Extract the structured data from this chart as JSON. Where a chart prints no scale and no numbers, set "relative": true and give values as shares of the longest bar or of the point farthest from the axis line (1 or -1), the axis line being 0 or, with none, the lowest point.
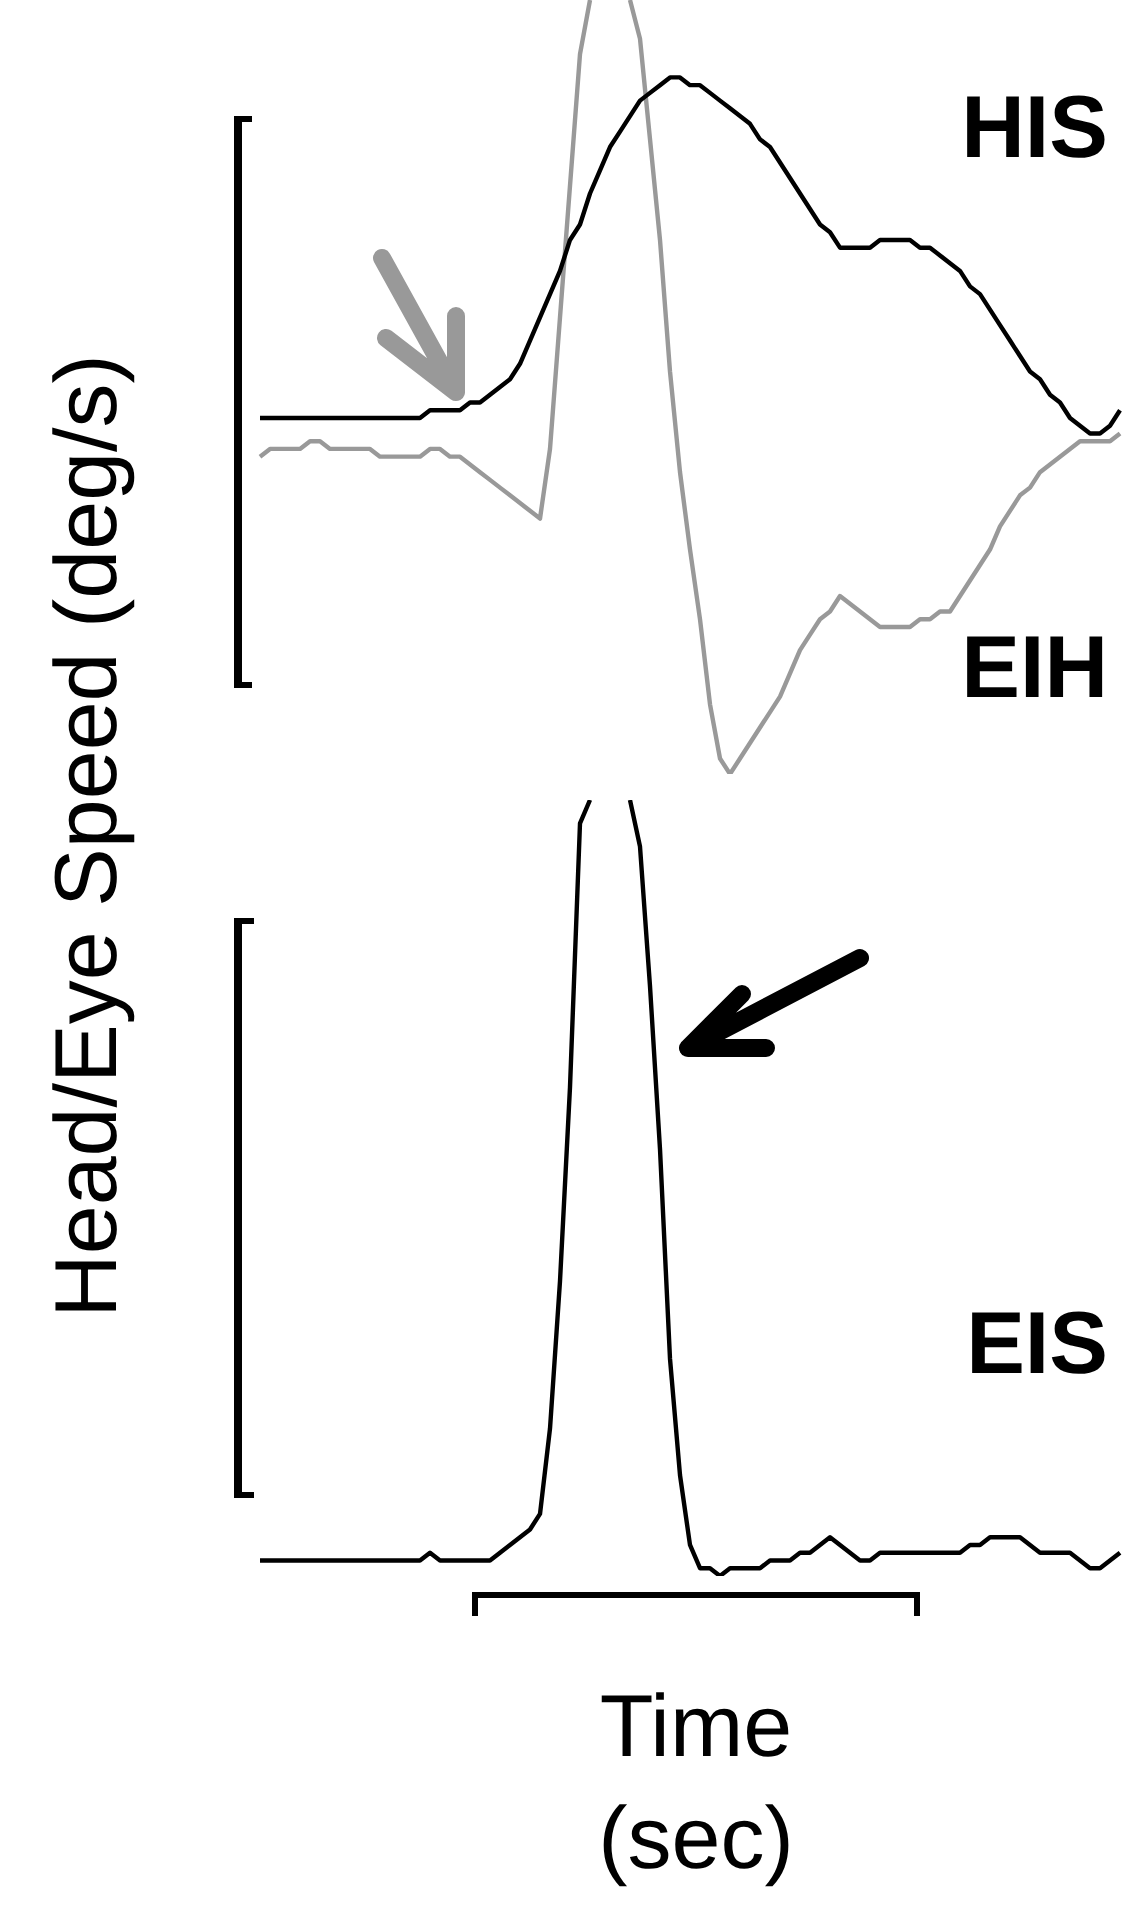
{
  "chart_data": [
    {
      "type": "line",
      "relative": true,
      "ylabel": "Head/Eye Speed (deg/s)",
      "marker": "none",
      "line_style": "solid",
      "categories": [
        null,
        null,
        null,
        null,
        null,
        null,
        null,
        null,
        null,
        null,
        null,
        null,
        null,
        null,
        null,
        null,
        null,
        null,
        null,
        null,
        null,
        null,
        null,
        null,
        null,
        null,
        null,
        null,
        null,
        null,
        null,
        null,
        null,
        null,
        null,
        null,
        null,
        null,
        null,
        null,
        null,
        null,
        null,
        null,
        null,
        null,
        null,
        null,
        null,
        null,
        null,
        null,
        null,
        null,
        null,
        null,
        null,
        null,
        null,
        null,
        null,
        null,
        null,
        null,
        null,
        null,
        null,
        null,
        null,
        null,
        null,
        null,
        null,
        null,
        null,
        null,
        null,
        null,
        null,
        null,
        null,
        null,
        null,
        null,
        null,
        null,
        null
      ],
      "series": [
        {
          "name": "HIS",
          "color": "#000000",
          "values": [
            0.46,
            0.46,
            0.46,
            0.46,
            0.46,
            0.46,
            0.46,
            0.46,
            0.46,
            0.46,
            0.46,
            0.46,
            0.46,
            0.46,
            0.46,
            0.46,
            0.46,
            0.47,
            0.47,
            0.47,
            0.47,
            0.48,
            0.48,
            0.49,
            0.5,
            0.51,
            0.53,
            0.56,
            0.59,
            0.62,
            0.65,
            0.69,
            0.71,
            0.75,
            0.78,
            0.81,
            0.83,
            0.85,
            0.87,
            0.88,
            0.89,
            0.9,
            0.9,
            0.89,
            0.89,
            0.88,
            0.87,
            0.86,
            0.85,
            0.84,
            0.82,
            0.81,
            0.79,
            0.77,
            0.75,
            0.73,
            0.71,
            0.7,
            0.68,
            0.68,
            0.68,
            0.68,
            0.69,
            0.69,
            0.69,
            0.69,
            0.68,
            0.68,
            0.67,
            0.66,
            0.65,
            0.63,
            0.62,
            0.6,
            0.58,
            0.56,
            0.54,
            0.52,
            0.51,
            0.49,
            0.48,
            0.46,
            0.45,
            0.44,
            0.44,
            0.45,
            0.47
          ]
        },
        {
          "name": "EIH",
          "color": "#999999",
          "values": [
            0.41,
            0.42,
            0.42,
            0.42,
            0.42,
            0.43,
            0.43,
            0.42,
            0.42,
            0.42,
            0.42,
            0.42,
            0.41,
            0.41,
            0.41,
            0.41,
            0.41,
            0.42,
            0.42,
            0.41,
            0.41,
            0.4,
            0.39,
            0.38,
            0.37,
            0.36,
            0.35,
            0.34,
            0.33,
            0.42,
            0.59,
            0.76,
            0.93,
            1,
            null,
            null,
            null,
            1,
            0.95,
            0.82,
            0.69,
            0.52,
            0.39,
            0.29,
            0.2,
            0.09,
            0.02,
            0.0,
            0.02,
            0.04,
            0.06,
            0.08,
            0.1,
            0.13,
            0.16,
            0.18,
            0.2,
            0.21,
            0.23,
            0.22,
            0.21,
            0.2,
            0.19,
            0.19,
            0.19,
            0.19,
            0.2,
            0.2,
            0.21,
            0.21,
            0.23,
            0.25,
            0.27,
            0.29,
            0.32,
            0.34,
            0.36,
            0.37,
            0.39,
            0.4,
            0.41,
            0.42,
            0.43,
            0.43,
            0.43,
            0.43,
            0.44
          ]
        }
      ]
    },
    {
      "type": "line",
      "relative": true,
      "xlabel": "Time (sec)",
      "marker": "none",
      "line_style": "solid",
      "categories": [
        null,
        null,
        null,
        null,
        null,
        null,
        null,
        null,
        null,
        null,
        null,
        null,
        null,
        null,
        null,
        null,
        null,
        null,
        null,
        null,
        null,
        null,
        null,
        null,
        null,
        null,
        null,
        null,
        null,
        null,
        null,
        null,
        null,
        null,
        null,
        null,
        null,
        null,
        null,
        null,
        null,
        null,
        null,
        null,
        null,
        null,
        null,
        null,
        null,
        null,
        null,
        null,
        null,
        null,
        null,
        null,
        null,
        null,
        null,
        null,
        null,
        null,
        null,
        null,
        null,
        null,
        null,
        null,
        null,
        null,
        null,
        null,
        null,
        null,
        null,
        null,
        null,
        null,
        null,
        null,
        null,
        null,
        null,
        null,
        null,
        null,
        null
      ],
      "series": [
        {
          "name": "EIS",
          "color": "#000000",
          "values": [
            0.02,
            0.02,
            0.02,
            0.02,
            0.02,
            0.02,
            0.02,
            0.02,
            0.02,
            0.02,
            0.02,
            0.02,
            0.02,
            0.02,
            0.02,
            0.02,
            0.02,
            0.03,
            0.02,
            0.02,
            0.02,
            0.02,
            0.02,
            0.02,
            0.03,
            0.04,
            0.05,
            0.06,
            0.08,
            0.19,
            0.38,
            0.63,
            0.97,
            1,
            null,
            null,
            null,
            1,
            0.94,
            0.76,
            0.55,
            0.28,
            0.13,
            0.04,
            0.01,
            0.01,
            0.0,
            0.01,
            0.01,
            0.01,
            0.01,
            0.02,
            0.02,
            0.02,
            0.03,
            0.03,
            0.04,
            0.05,
            0.04,
            0.03,
            0.02,
            0.02,
            0.03,
            0.03,
            0.03,
            0.03,
            0.03,
            0.03,
            0.03,
            0.03,
            0.03,
            0.04,
            0.04,
            0.05,
            0.05,
            0.05,
            0.05,
            0.04,
            0.03,
            0.03,
            0.03,
            0.03,
            0.02,
            0.01,
            0.01,
            0.02,
            0.03
          ]
        }
      ]
    }
  ]
}
